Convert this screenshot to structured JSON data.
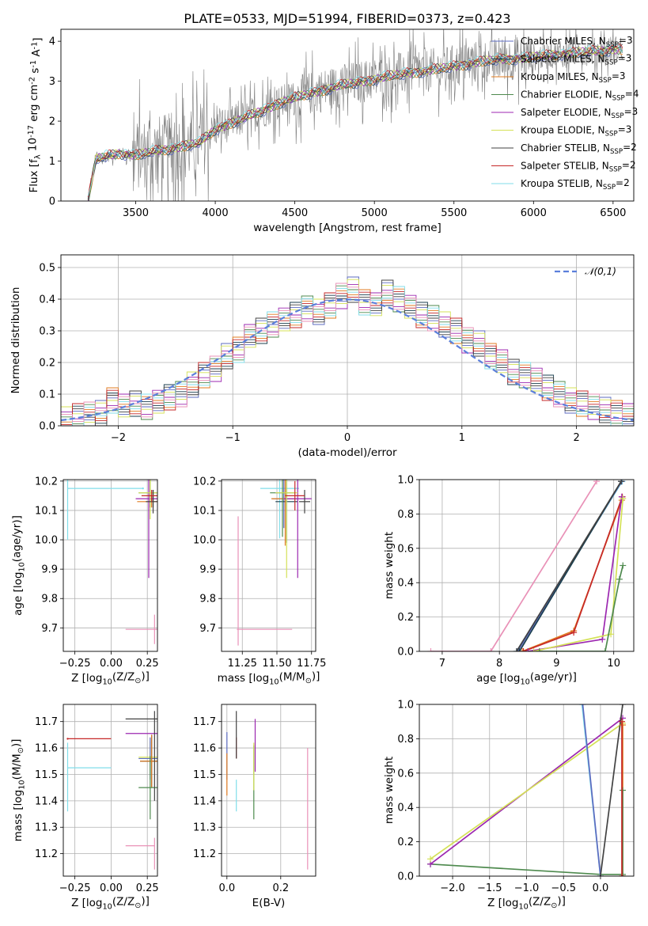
{
  "chart_data": [
    {
      "id": "spectrum",
      "type": "line",
      "title": "PLATE=0533, MJD=51994, FIBERID=0373, z=0.423",
      "xlabel": "wavelength [Angstrom, rest frame]",
      "ylabel": "Flux [f$_\\lambda$ 10$^{-17}$ erg cm$^{-2}$ s$^{-1}$ A$^{-1}$]",
      "xlim": [
        3030,
        6630
      ],
      "ylim": [
        0,
        4.3
      ],
      "xticks": [
        3500,
        4000,
        4500,
        5000,
        5500,
        6000,
        6500
      ],
      "yticks": [
        0,
        1,
        2,
        3,
        4
      ],
      "grid": false,
      "legend_loc": "upper right",
      "legend": [
        {
          "label": "Chabrier MILES, N$_{SSP}$=3",
          "color": "#5c6bc0"
        },
        {
          "label": "Salpeter MILES, N$_{SSP}$=3",
          "color": "#1b3f4f"
        },
        {
          "label": "Kroupa MILES, N$_{SSP}$=3",
          "color": "#e07b20"
        },
        {
          "label": "Chabrier ELODIE, N$_{SSP}$=4",
          "color": "#4e8a4e"
        },
        {
          "label": "Salpeter ELODIE, N$_{SSP}$=3",
          "color": "#9c27b0"
        },
        {
          "label": "Kroupa ELODIE, N$_{SSP}$=3",
          "color": "#d4e157"
        },
        {
          "label": "Chabrier STELIB, N$_{SSP}$=2",
          "color": "#424242"
        },
        {
          "label": "Salpeter STELIB, N$_{SSP}$=2",
          "color": "#c62828"
        },
        {
          "label": "Kroupa STELIB, N$_{SSP}$=2",
          "color": "#80deea"
        }
      ],
      "data_color": "#7f7f7f",
      "model_anchors": {
        "x": [
          3200,
          3250,
          3400,
          3500,
          3700,
          3900,
          4000,
          4200,
          4400,
          4600,
          4800,
          5000,
          5200,
          5400,
          5600,
          5800,
          6000,
          6200,
          6400,
          6500
        ],
        "y": [
          0.0,
          1.05,
          1.2,
          1.15,
          1.3,
          1.45,
          1.8,
          2.1,
          2.45,
          2.7,
          2.9,
          3.05,
          3.2,
          3.3,
          3.45,
          3.55,
          3.6,
          3.7,
          3.75,
          3.8
        ]
      }
    },
    {
      "id": "residuals",
      "type": "step",
      "xlabel": "(data-model)/error",
      "ylabel": "Normed distribution",
      "xlim": [
        -2.5,
        2.5
      ],
      "ylim": [
        0,
        0.54
      ],
      "xticks": [
        -2,
        -1,
        0,
        1,
        2
      ],
      "yticks": [
        0.0,
        0.1,
        0.2,
        0.3,
        0.4,
        0.5
      ],
      "grid": true,
      "bin_width": 0.1,
      "legend": [
        {
          "label": "$\\mathcal{N}(0,1)$",
          "color": "#5b7fdb",
          "style": "dashed"
        }
      ],
      "histogram_envelope": {
        "x": [
          -2.45,
          -2.35,
          -2.25,
          -2.15,
          -2.05,
          -1.95,
          -1.85,
          -1.75,
          -1.65,
          -1.55,
          -1.45,
          -1.35,
          -1.25,
          -1.15,
          -1.05,
          -0.95,
          -0.85,
          -0.75,
          -0.65,
          -0.55,
          -0.45,
          -0.35,
          -0.25,
          -0.15,
          -0.05,
          0.05,
          0.15,
          0.25,
          0.35,
          0.45,
          0.55,
          0.65,
          0.75,
          0.85,
          0.95,
          1.05,
          1.15,
          1.25,
          1.35,
          1.45,
          1.55,
          1.65,
          1.75,
          1.85,
          1.95,
          2.05,
          2.15,
          2.25,
          2.35,
          2.45
        ],
        "y": [
          0.02,
          0.03,
          0.035,
          0.04,
          0.08,
          0.06,
          0.07,
          0.06,
          0.08,
          0.09,
          0.1,
          0.13,
          0.16,
          0.18,
          0.22,
          0.24,
          0.28,
          0.3,
          0.32,
          0.34,
          0.35,
          0.37,
          0.36,
          0.38,
          0.41,
          0.43,
          0.39,
          0.38,
          0.42,
          0.4,
          0.38,
          0.35,
          0.34,
          0.32,
          0.3,
          0.27,
          0.26,
          0.22,
          0.2,
          0.17,
          0.16,
          0.15,
          0.12,
          0.1,
          0.08,
          0.07,
          0.06,
          0.05,
          0.04,
          0.03
        ]
      }
    },
    {
      "id": "age_vs_Z",
      "type": "errorbar",
      "xlabel": "Z [log$_{10}$(Z/Z$_\\odot$)]",
      "ylabel": "age  [log$_{10}$(age/yr)]",
      "xlim": [
        -0.33,
        0.32
      ],
      "ylim": [
        9.62,
        10.205
      ],
      "xticks": [
        -0.25,
        0.0,
        0.25
      ],
      "yticks": [
        9.7,
        9.8,
        9.9,
        10.0,
        10.1,
        10.2
      ],
      "grid": true,
      "points": [
        {
          "color": "#80deea",
          "x": -0.3,
          "xerr": 0.0,
          "y": 10.175,
          "yerr": 0.175
        },
        {
          "color": "#80deea",
          "x": 0.22,
          "xerr": 0.0,
          "y": 10.175,
          "yerr": 0.0
        },
        {
          "color": "#5c6bc0",
          "x": 0.27,
          "xerr": 0.0,
          "y": 10.14,
          "yerr": 0.03
        },
        {
          "color": "#1b3f4f",
          "x": 0.29,
          "xerr": 0.0,
          "y": 10.14,
          "yerr": 0.03
        },
        {
          "color": "#e07b20",
          "x": 0.28,
          "xerr": 0.1,
          "y": 10.13,
          "yerr": 0.02
        },
        {
          "color": "#4e8a4e",
          "x": 0.27,
          "xerr": 0.08,
          "y": 10.16,
          "yerr": 0.05
        },
        {
          "color": "#9c27b0",
          "x": 0.26,
          "xerr": 0.09,
          "y": 10.14,
          "yerr": 0.27
        },
        {
          "color": "#d4e157",
          "x": 0.27,
          "xerr": 0.08,
          "y": 10.16,
          "yerr": 0.09
        },
        {
          "color": "#424242",
          "x": 0.29,
          "xerr": 0.05,
          "y": 10.13,
          "yerr": 0.04
        },
        {
          "color": "#c62828",
          "x": 0.28,
          "xerr": 0.07,
          "y": 10.15,
          "yerr": 0.02
        },
        {
          "color": "#e991b7",
          "x": 0.3,
          "xerr": 0.2,
          "y": 9.695,
          "yerr": 0.05
        }
      ]
    },
    {
      "id": "age_vs_mass",
      "type": "errorbar",
      "xlabel": "mass [log$_{10}$(M/M$_\\odot$)]",
      "ylabel": "",
      "xlim": [
        11.1,
        11.78
      ],
      "ylim": [
        9.62,
        10.205
      ],
      "xticks": [
        11.25,
        11.5,
        11.75
      ],
      "yticks": [
        9.7,
        9.8,
        9.9,
        10.0,
        10.1,
        10.2
      ],
      "grid": true,
      "points": [
        {
          "color": "#80deea",
          "x": 11.52,
          "xerr": 0.14,
          "y": 10.175,
          "yerr": 0.17
        },
        {
          "color": "#5c6bc0",
          "x": 11.55,
          "xerr": 0.08,
          "y": 10.14,
          "yerr": 0.1
        },
        {
          "color": "#1b3f4f",
          "x": 11.57,
          "xerr": 0.08,
          "y": 10.13,
          "yerr": 0.14
        },
        {
          "color": "#e07b20",
          "x": 11.56,
          "xerr": 0.1,
          "y": 10.14,
          "yerr": 0.16
        },
        {
          "color": "#4e8a4e",
          "x": 11.54,
          "xerr": 0.09,
          "y": 10.16,
          "yerr": 0.15
        },
        {
          "color": "#9c27b0",
          "x": 11.65,
          "xerr": 0.1,
          "y": 10.14,
          "yerr": 0.27
        },
        {
          "color": "#d4e157",
          "x": 11.57,
          "xerr": 0.08,
          "y": 10.16,
          "yerr": 0.29
        },
        {
          "color": "#424242",
          "x": 11.7,
          "xerr": 0.04,
          "y": 10.13,
          "yerr": 0.04
        },
        {
          "color": "#c62828",
          "x": 11.63,
          "xerr": 0.07,
          "y": 10.15,
          "yerr": 0.05
        },
        {
          "color": "#e991b7",
          "x": 11.22,
          "xerr": 0.0,
          "y": 9.86,
          "yerr": 0.22
        },
        {
          "color": "#e991b7",
          "x": 11.41,
          "xerr": 0.2,
          "y": 9.695,
          "yerr": 0.0
        }
      ]
    },
    {
      "id": "weight_vs_age",
      "type": "line",
      "xlabel": "age  [log$_{10}$(age/yr)]",
      "ylabel": "mass weight",
      "xlim": [
        6.6,
        10.35
      ],
      "ylim": [
        0.0,
        1.0
      ],
      "xticks": [
        7,
        8,
        9,
        10
      ],
      "yticks": [
        0.0,
        0.2,
        0.4,
        0.6,
        0.8,
        1.0
      ],
      "grid": true,
      "series": [
        {
          "color": "#e991b7",
          "x": [
            6.8,
            7.85,
            9.7
          ],
          "y": [
            0.0,
            0.0,
            0.99
          ]
        },
        {
          "color": "#80deea",
          "x": [
            8.3,
            10.15
          ],
          "y": [
            0.0,
            0.99
          ]
        },
        {
          "color": "#5c6bc0",
          "x": [
            8.32,
            10.14
          ],
          "y": [
            0.0,
            0.99
          ]
        },
        {
          "color": "#1b3f4f",
          "x": [
            8.35,
            10.13
          ],
          "y": [
            0.0,
            0.99
          ]
        },
        {
          "color": "#424242",
          "x": [
            8.3,
            10.13
          ],
          "y": [
            0.0,
            0.99
          ]
        },
        {
          "color": "#e07b20",
          "x": [
            8.4,
            9.3,
            10.14
          ],
          "y": [
            0.0,
            0.12,
            0.88
          ]
        },
        {
          "color": "#c62828",
          "x": [
            8.42,
            9.3,
            10.15
          ],
          "y": [
            0.0,
            0.11,
            0.9
          ]
        },
        {
          "color": "#9c27b0",
          "x": [
            8.5,
            9.8,
            10.14
          ],
          "y": [
            0.0,
            0.07,
            0.9
          ]
        },
        {
          "color": "#d4e157",
          "x": [
            8.6,
            9.95,
            10.16
          ],
          "y": [
            0.0,
            0.1,
            0.89
          ]
        },
        {
          "color": "#4e8a4e",
          "x": [
            8.7,
            9.85,
            10.1,
            10.16
          ],
          "y": [
            0.0,
            0.0,
            0.42,
            0.5
          ]
        }
      ]
    },
    {
      "id": "mass_vs_Z",
      "type": "errorbar",
      "xlabel": "Z [log$_{10}$(Z/Z$_\\odot$)]",
      "ylabel": "mass [log$_{10}$(M/M$_\\odot$)]",
      "xlim": [
        -0.33,
        0.32
      ],
      "ylim": [
        11.115,
        11.765
      ],
      "xticks": [
        -0.25,
        0.0,
        0.25
      ],
      "yticks": [
        11.2,
        11.3,
        11.4,
        11.5,
        11.6,
        11.7
      ],
      "grid": true,
      "points": [
        {
          "color": "#c62828",
          "x": -0.3,
          "xerr": 0.0,
          "y": 11.635,
          "yerr": 0.0
        },
        {
          "color": "#c62828",
          "x": -0.15,
          "xerr": 0.15,
          "y": 11.635,
          "yerr": 0.0
        },
        {
          "color": "#80deea",
          "x": -0.15,
          "xerr": 0.15,
          "y": 11.525,
          "yerr": 0.0
        },
        {
          "color": "#80deea",
          "x": -0.3,
          "xerr": 0.0,
          "y": 11.49,
          "yerr": 0.13
        },
        {
          "color": "#424242",
          "x": 0.21,
          "xerr": 0.11,
          "y": 11.71,
          "yerr": 0.0
        },
        {
          "color": "#9c27b0",
          "x": 0.21,
          "xerr": 0.11,
          "y": 11.655,
          "yerr": 0.0
        },
        {
          "color": "#d4e157",
          "x": 0.27,
          "xerr": 0.08,
          "y": 11.565,
          "yerr": 0.06
        },
        {
          "color": "#5c6bc0",
          "x": 0.27,
          "xerr": 0.08,
          "y": 11.56,
          "yerr": 0.08
        },
        {
          "color": "#1b3f4f",
          "x": 0.28,
          "xerr": 0.08,
          "y": 11.55,
          "yerr": 0.1
        },
        {
          "color": "#e07b20",
          "x": 0.28,
          "xerr": 0.08,
          "y": 11.55,
          "yerr": 0.1
        },
        {
          "color": "#4e8a4e",
          "x": 0.27,
          "xerr": 0.08,
          "y": 11.45,
          "yerr": 0.12
        },
        {
          "color": "#424242",
          "x": 0.3,
          "xerr": 0.0,
          "y": 11.57,
          "yerr": 0.17
        },
        {
          "color": "#e991b7",
          "x": 0.2,
          "xerr": 0.1,
          "y": 11.23,
          "yerr": 0.0
        },
        {
          "color": "#e991b7",
          "x": 0.3,
          "xerr": 0.0,
          "y": 11.2,
          "yerr": 0.06
        }
      ]
    },
    {
      "id": "mass_vs_ebv",
      "type": "errorbar",
      "xlabel": "E(B-V)",
      "ylabel": "",
      "xlim": [
        -0.02,
        0.33
      ],
      "ylim": [
        11.115,
        11.765
      ],
      "xticks": [
        0.0,
        0.2
      ],
      "yticks": [
        11.2,
        11.3,
        11.4,
        11.5,
        11.6,
        11.7
      ],
      "grid": true,
      "points": [
        {
          "color": "#5c6bc0",
          "x": 0.0,
          "xerr": 0.0,
          "y": 11.57,
          "yerr": 0.09
        },
        {
          "color": "#e07b20",
          "x": 0.0,
          "xerr": 0.0,
          "y": 11.5,
          "yerr": 0.08
        },
        {
          "color": "#c62828",
          "x": 0.035,
          "xerr": 0.0,
          "y": 11.6,
          "yerr": 0.04
        },
        {
          "color": "#424242",
          "x": 0.035,
          "xerr": 0.0,
          "y": 11.65,
          "yerr": 0.09
        },
        {
          "color": "#80deea",
          "x": 0.035,
          "xerr": 0.0,
          "y": 11.42,
          "yerr": 0.06
        },
        {
          "color": "#4e8a4e",
          "x": 0.1,
          "xerr": 0.0,
          "y": 11.47,
          "yerr": 0.14
        },
        {
          "color": "#d4e157",
          "x": 0.1,
          "xerr": 0.0,
          "y": 11.53,
          "yerr": 0.09
        },
        {
          "color": "#9c27b0",
          "x": 0.105,
          "xerr": 0.0,
          "y": 11.61,
          "yerr": 0.1
        },
        {
          "color": "#e991b7",
          "x": 0.3,
          "xerr": 0.0,
          "y": 11.37,
          "yerr": 0.23
        }
      ]
    },
    {
      "id": "weight_vs_Z",
      "type": "line",
      "xlabel": "Z [log$_{10}$(Z/Z$_\\odot$)]",
      "ylabel": "mass weight",
      "xlim": [
        -2.45,
        0.45
      ],
      "ylim": [
        0.0,
        1.0
      ],
      "xticks": [
        -2.0,
        -1.5,
        -1.0,
        -0.5,
        0.0
      ],
      "yticks": [
        0.0,
        0.2,
        0.4,
        0.6,
        0.8,
        1.0
      ],
      "grid": true,
      "series": [
        {
          "color": "#4e8a4e",
          "x": [
            -2.3,
            0.0,
            0.3
          ],
          "y": [
            0.07,
            0.01,
            0.01
          ]
        },
        {
          "color": "#9c27b0",
          "x": [
            -2.3,
            0.3
          ],
          "y": [
            0.07,
            0.92
          ]
        },
        {
          "color": "#d4e157",
          "x": [
            -2.3,
            0.3
          ],
          "y": [
            0.1,
            0.89
          ]
        },
        {
          "color": "#80deea",
          "x": [
            -0.25,
            0.0
          ],
          "y": [
            1.0,
            0.0
          ]
        },
        {
          "color": "#5c6bc0",
          "x": [
            -0.24,
            0.0
          ],
          "y": [
            1.0,
            0.0
          ]
        },
        {
          "color": "#424242",
          "x": [
            0.0,
            0.3
          ],
          "y": [
            0.0,
            1.0
          ]
        },
        {
          "color": "#e07b20",
          "x": [
            0.3,
            0.3
          ],
          "y": [
            0.0,
            0.88
          ]
        },
        {
          "color": "#4e8a4e",
          "x": [
            0.3,
            0.3
          ],
          "y": [
            0.0,
            0.5
          ]
        },
        {
          "color": "#c62828",
          "x": [
            0.29,
            0.29
          ],
          "y": [
            0.0,
            0.9
          ]
        }
      ]
    }
  ]
}
